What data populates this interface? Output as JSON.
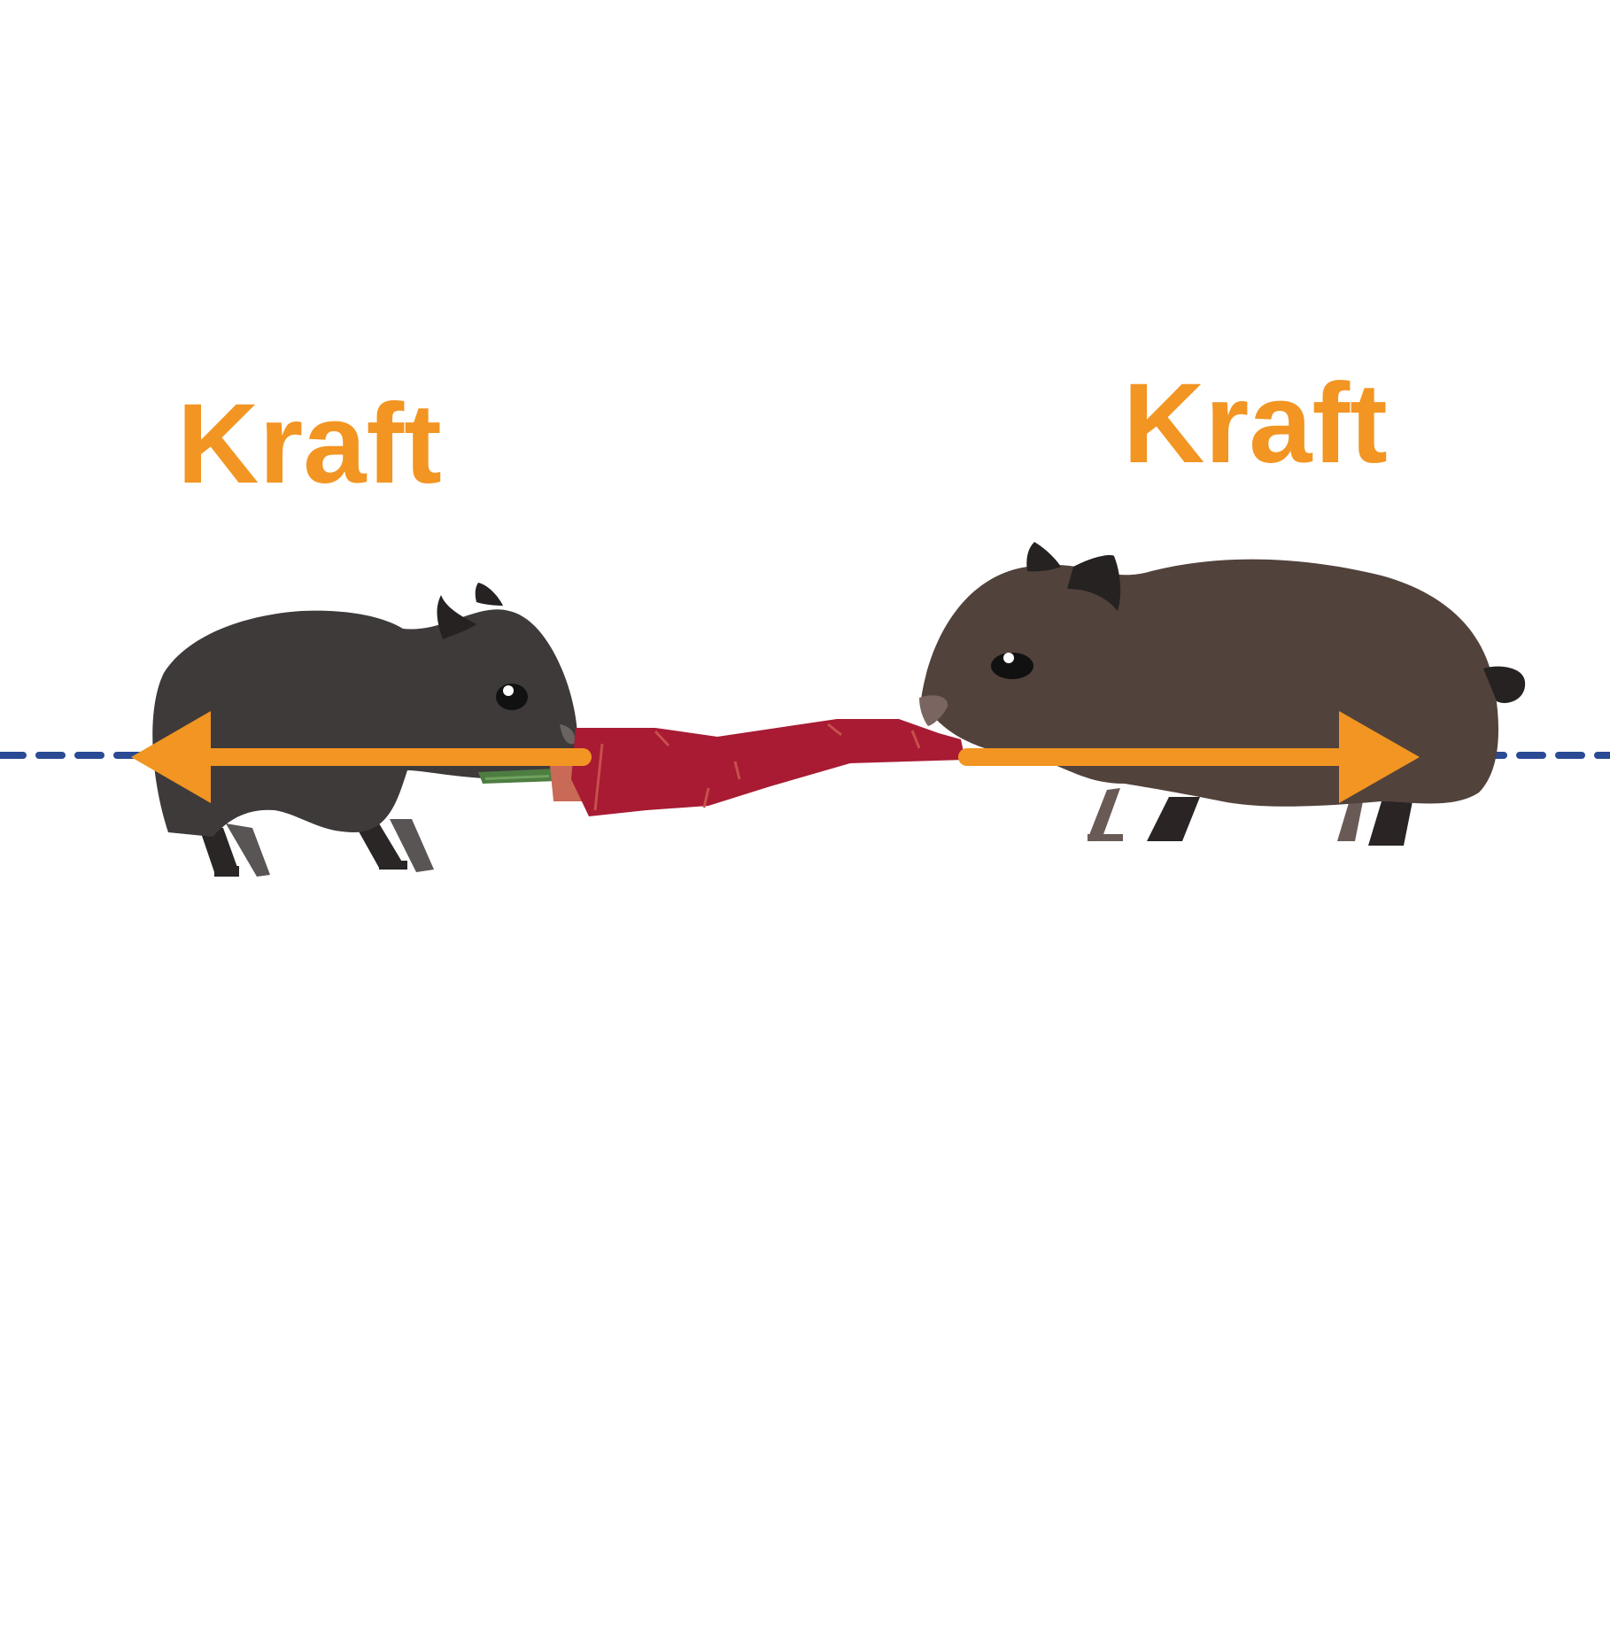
{
  "labels": {
    "left_force": "Kraft",
    "right_force": "Kraft"
  },
  "colors": {
    "background": "#ffffff",
    "force_arrow": "#f29522",
    "baseline_dashed": "#2a4a94",
    "left_animal_body": "#3e3a3a",
    "right_animal_body": "#52423c",
    "carrot": "#a81b33",
    "carrot_green": "#4e7d42"
  },
  "icons": {
    "left_animal": "guinea-pig-dark-grey",
    "right_animal": "guinea-pig-brown",
    "carrot": "carrot",
    "left_arrow": "arrow-left",
    "right_arrow": "arrow-right"
  }
}
